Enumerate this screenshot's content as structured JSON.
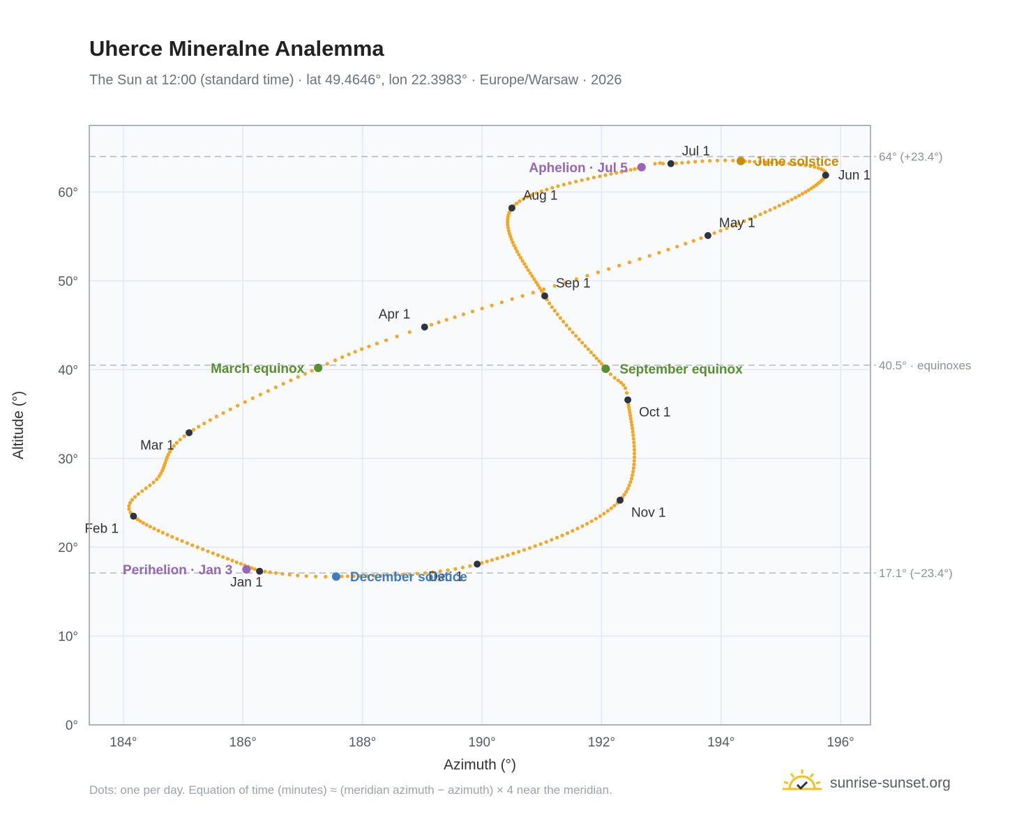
{
  "header": {
    "title": "Uherce Mineralne Analemma",
    "subtitle": "The Sun at 12:00 (standard time) · lat 49.4646°, lon 22.3983° · Europe/Warsaw · 2026"
  },
  "footer": {
    "note": "Dots: one per day. Equation of time (minutes) ≈ (meridian azimuth − azimuth) × 4 near the meridian.",
    "brand": "sunrise-sunset.org"
  },
  "colors": {
    "path": "#f5a623",
    "month_marker": "#2d3340",
    "equinox": "#5a8f2e",
    "june_solstice": "#c98c08",
    "december_solstice": "#3b7cc4",
    "apsis": "#9467bd",
    "plot_bg": "#f8fafc",
    "grid": "#e2e8f0",
    "reference_line": "#b4bac3"
  },
  "chart_data": {
    "type": "scatter",
    "title": "Uherce Mineralne Analemma",
    "xlabel": "Azimuth (°)",
    "ylabel": "Altitude (°)",
    "xlim": [
      183.43,
      196.5
    ],
    "ylim": [
      0,
      67.5
    ],
    "xticks": [
      184,
      186,
      188,
      190,
      192,
      194,
      196
    ],
    "xtick_labels": [
      "184°",
      "186°",
      "188°",
      "190°",
      "192°",
      "194°",
      "196°"
    ],
    "yticks": [
      0,
      10,
      20,
      30,
      40,
      50,
      60
    ],
    "ytick_labels": [
      "0°",
      "10°",
      "20°",
      "30°",
      "40°",
      "50°",
      "60°"
    ],
    "grid": true,
    "series_path": {
      "description_points": [
        {
          "day": 1,
          "x": 186.28,
          "y": 17.3
        },
        {
          "day": 32,
          "x": 184.17,
          "y": 23.5
        },
        {
          "day": 45,
          "x": 184.6,
          "y": 28.0
        },
        {
          "day": 60,
          "x": 185.1,
          "y": 32.9
        },
        {
          "day": 79,
          "x": 187.26,
          "y": 40.2
        },
        {
          "day": 91,
          "x": 189.04,
          "y": 44.8
        },
        {
          "day": 121,
          "x": 193.78,
          "y": 55.1
        },
        {
          "day": 152,
          "x": 195.75,
          "y": 61.9
        },
        {
          "day": 172,
          "x": 194.33,
          "y": 63.5
        },
        {
          "day": 182,
          "x": 193.16,
          "y": 63.2
        },
        {
          "day": 186,
          "x": 192.67,
          "y": 62.8
        },
        {
          "day": 213,
          "x": 190.5,
          "y": 58.2
        },
        {
          "day": 244,
          "x": 191.05,
          "y": 48.3
        },
        {
          "day": 266,
          "x": 192.07,
          "y": 40.1
        },
        {
          "day": 274,
          "x": 192.44,
          "y": 36.6
        },
        {
          "day": 305,
          "x": 192.31,
          "y": 25.3
        },
        {
          "day": 335,
          "x": 189.92,
          "y": 18.1
        },
        {
          "day": 355,
          "x": 187.56,
          "y": 16.7
        },
        {
          "day": 365,
          "x": 186.3,
          "y": 17.3
        }
      ]
    },
    "month_markers": [
      {
        "label": "Jan 1",
        "x": 186.28,
        "y": 17.3,
        "pos": "below"
      },
      {
        "label": "Feb 1",
        "x": 184.17,
        "y": 23.5,
        "pos": "below-left"
      },
      {
        "label": "Mar 1",
        "x": 185.1,
        "y": 32.9,
        "pos": "below-left"
      },
      {
        "label": "Apr 1",
        "x": 189.04,
        "y": 44.8,
        "pos": "above-left"
      },
      {
        "label": "May 1",
        "x": 193.78,
        "y": 55.1,
        "pos": "above-right"
      },
      {
        "label": "Jun 1",
        "x": 195.75,
        "y": 61.9,
        "pos": "right"
      },
      {
        "label": "Jul 1",
        "x": 193.16,
        "y": 63.2,
        "pos": "above-right"
      },
      {
        "label": "Aug 1",
        "x": 190.5,
        "y": 58.2,
        "pos": "above-right"
      },
      {
        "label": "Sep 1",
        "x": 191.05,
        "y": 48.3,
        "pos": "above-right"
      },
      {
        "label": "Oct 1",
        "x": 192.44,
        "y": 36.6,
        "pos": "below-right"
      },
      {
        "label": "Nov 1",
        "x": 192.31,
        "y": 25.3,
        "pos": "below-right"
      },
      {
        "label": "Dec 1",
        "x": 189.92,
        "y": 18.1,
        "pos": "below-left"
      }
    ],
    "events": [
      {
        "label": "March equinox",
        "x": 187.26,
        "y": 40.2,
        "color_key": "equinox",
        "pos": "left"
      },
      {
        "label": "September equinox",
        "x": 192.07,
        "y": 40.1,
        "color_key": "equinox",
        "pos": "right"
      },
      {
        "label": "June solstice",
        "x": 194.33,
        "y": 63.5,
        "color_key": "june_solstice",
        "pos": "right"
      },
      {
        "label": "December solstice",
        "x": 187.56,
        "y": 16.7,
        "color_key": "december_solstice",
        "pos": "right"
      },
      {
        "label": "Aphelion · Jul 5",
        "x": 192.67,
        "y": 62.8,
        "color_key": "apsis",
        "pos": "left"
      },
      {
        "label": "Perihelion · Jan 3",
        "x": 186.06,
        "y": 17.5,
        "color_key": "apsis",
        "pos": "left"
      }
    ],
    "reference_lines": [
      {
        "y": 64.0,
        "label": "64° (+23.4°)"
      },
      {
        "y": 40.5,
        "label": "40.5° · equinoxes"
      },
      {
        "y": 17.1,
        "label": "17.1° (−23.4°)"
      }
    ]
  }
}
